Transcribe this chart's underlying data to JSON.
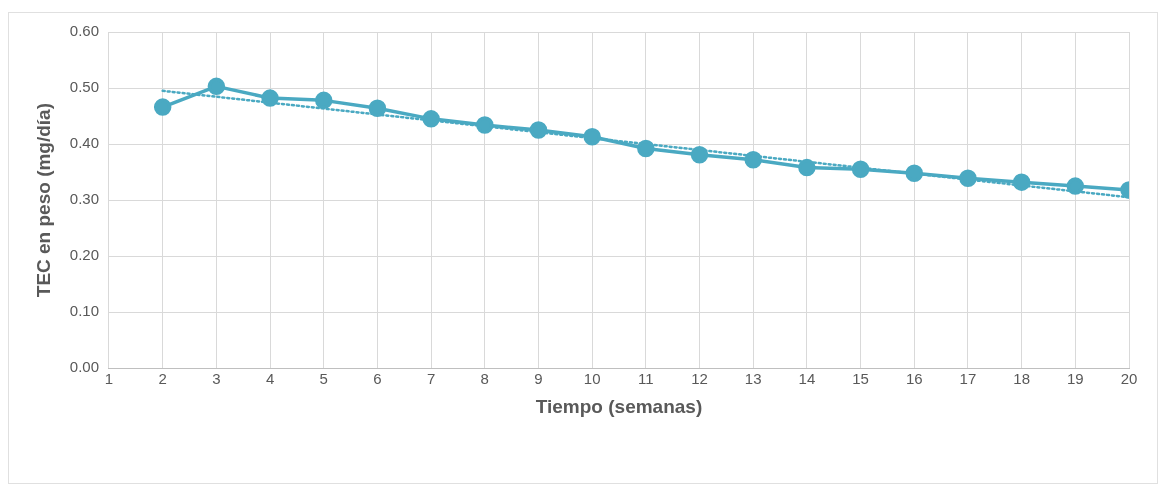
{
  "chart_data": {
    "type": "line",
    "xlabel": "Tiempo (semanas)",
    "ylabel": "TEC en peso (mg/día)",
    "x": [
      2,
      3,
      4,
      5,
      6,
      7,
      8,
      9,
      10,
      11,
      12,
      13,
      14,
      15,
      16,
      17,
      18,
      19,
      20
    ],
    "series": [
      {
        "color": "#4aa9c2",
        "marker": "circle",
        "line_style": "solid",
        "values": [
          0.466,
          0.503,
          0.482,
          0.478,
          0.464,
          0.445,
          0.434,
          0.425,
          0.413,
          0.392,
          0.381,
          0.372,
          0.358,
          0.355,
          0.348,
          0.339,
          0.332,
          0.325,
          0.318
        ]
      },
      {
        "type": "line",
        "color": "#4aa9c2",
        "marker": "none",
        "line_style": "dotted",
        "x": [
          2,
          20
        ],
        "values": [
          0.495,
          0.305
        ]
      }
    ],
    "xlim": [
      1,
      20
    ],
    "xticks": [
      1,
      2,
      3,
      4,
      5,
      6,
      7,
      8,
      9,
      10,
      11,
      12,
      13,
      14,
      15,
      16,
      17,
      18,
      19,
      20
    ],
    "ylim": [
      0,
      0.6
    ],
    "yticks": [
      {
        "value": 0,
        "label": "0.00"
      },
      {
        "value": 0.1,
        "label": "0.10"
      },
      {
        "value": 0.2,
        "label": "0.20"
      },
      {
        "value": 0.3,
        "label": "0.30"
      },
      {
        "value": 0.4,
        "label": "0.40"
      },
      {
        "value": 0.5,
        "label": "0.50"
      },
      {
        "value": 0.6,
        "label": "0.60"
      }
    ],
    "grid": true,
    "legend": false
  }
}
